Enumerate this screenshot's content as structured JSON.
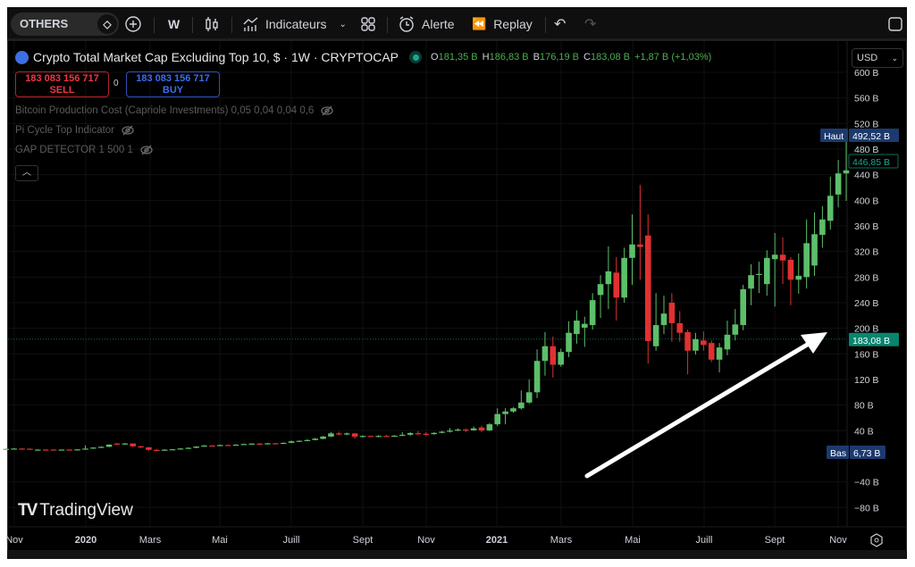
{
  "toolbar": {
    "symbol": "OTHERS",
    "interval": "W",
    "indicators_label": "Indicateurs",
    "alert_label": "Alerte",
    "replay_label": "Replay"
  },
  "legend": {
    "title": "Crypto Total Market Cap Excluding Top 10, $ · 1W · CRYPTOCAP",
    "o_label": "O",
    "o": "181,35 B",
    "h_label": "H",
    "h": "186,83 B",
    "l_label": "B",
    "l": "176,19 B",
    "c_label": "C",
    "c": "183,08 B",
    "change": "+1,87 B (+1,03%)"
  },
  "trade": {
    "sell_price": "183 083 156 717",
    "sell_label": "SELL",
    "spread": "0",
    "buy_price": "183 083 156 717",
    "buy_label": "BUY"
  },
  "indicators": [
    {
      "label": "Bitcoin Production Cost (Capriole Investments) 0,05 0,04 0,04 0,6"
    },
    {
      "label": "Pi Cycle Top Indicator"
    },
    {
      "label": "GAP DETECTOR 1 500 1"
    }
  ],
  "currency": "USD",
  "branding": "TradingView",
  "colors": {
    "up": "#5cbf6a",
    "down": "#e03131",
    "last_price": "#08856f",
    "high_low": "#1c3a6e",
    "background": "#000000"
  },
  "chart_data": {
    "type": "candlestick",
    "interval": "1W",
    "ylim": [
      -100,
      610
    ],
    "y_ticks": [
      {
        "value": 600,
        "label": "600 B"
      },
      {
        "value": 560,
        "label": "560 B"
      },
      {
        "value": 520,
        "label": "520 B"
      },
      {
        "value": 480,
        "label": "480 B"
      },
      {
        "value": 440,
        "label": "440 B"
      },
      {
        "value": 400,
        "label": "400 B"
      },
      {
        "value": 360,
        "label": "360 B"
      },
      {
        "value": 320,
        "label": "320 B"
      },
      {
        "value": 280,
        "label": "280 B"
      },
      {
        "value": 240,
        "label": "240 B"
      },
      {
        "value": 200,
        "label": "200 B"
      },
      {
        "value": 160,
        "label": "160 B"
      },
      {
        "value": 120,
        "label": "120 B"
      },
      {
        "value": 80,
        "label": "80 B"
      },
      {
        "value": 40,
        "label": "40 B"
      },
      {
        "value": -40,
        "label": "−40 B"
      },
      {
        "value": -80,
        "label": "−80 B"
      }
    ],
    "x_ticks": [
      "Nov",
      "2020",
      "Mars",
      "Mai",
      "Juill",
      "Sept",
      "Nov",
      "2021",
      "Mars",
      "Mai",
      "Juill",
      "Sept",
      "Nov"
    ],
    "high_marker": {
      "label": "Haut",
      "value": 492.52,
      "text": "492,52 B"
    },
    "low_marker": {
      "label": "Bas",
      "value": 6.73,
      "text": "6,73 B"
    },
    "last_price": {
      "value": 446.85,
      "text": "446,85 B"
    },
    "crosshair_price": {
      "value": 183.08,
      "text": "183,08 B"
    },
    "ohlc": [
      [
        11,
        12.4,
        10.6,
        11.6
      ],
      [
        11.6,
        12.6,
        11.2,
        12.1
      ],
      [
        12.1,
        12.5,
        11.6,
        12.0
      ],
      [
        11.8,
        12.2,
        10,
        10.5
      ],
      [
        10.3,
        11,
        9.8,
        10.5
      ],
      [
        10.5,
        11,
        9.9,
        10.4
      ],
      [
        10.5,
        11,
        9.8,
        10.2
      ],
      [
        10.2,
        10.9,
        9.8,
        10.5
      ],
      [
        10.5,
        10.9,
        9.7,
        10.2
      ],
      [
        10.2,
        11.2,
        9.9,
        10.8
      ],
      [
        10.8,
        17,
        10.3,
        12
      ],
      [
        12,
        14.2,
        11.6,
        13.6
      ],
      [
        13.6,
        15.4,
        13,
        14.8
      ],
      [
        14.8,
        18.8,
        14.2,
        18.2
      ],
      [
        19.8,
        21.2,
        18.6,
        19.2
      ],
      [
        19.2,
        21,
        18.6,
        20
      ],
      [
        20,
        20.5,
        14.5,
        15.5
      ],
      [
        15.5,
        16.5,
        13,
        14
      ],
      [
        14,
        14.5,
        8.6,
        10
      ],
      [
        10,
        11.5,
        8.6,
        9.5
      ],
      [
        9.5,
        11,
        9,
        10.3
      ],
      [
        10.3,
        11.5,
        10,
        11
      ],
      [
        11,
        12.8,
        10.6,
        12.2
      ],
      [
        12.2,
        14,
        11.8,
        13.2
      ],
      [
        13.2,
        15.8,
        12.8,
        15.2
      ],
      [
        15.2,
        17.5,
        14.8,
        16.8
      ],
      [
        16.8,
        17.6,
        15.5,
        16.2
      ],
      [
        16.2,
        18.2,
        15.8,
        17.6
      ],
      [
        17.6,
        18.5,
        16.6,
        17.2
      ],
      [
        17.2,
        18.8,
        16.8,
        18.2
      ],
      [
        18.2,
        19.6,
        17.6,
        19.2
      ],
      [
        19.2,
        20.3,
        18.6,
        19.8
      ],
      [
        19.8,
        20.8,
        18.8,
        19.2
      ],
      [
        19.2,
        21,
        18.8,
        20.3
      ],
      [
        20.3,
        21,
        19.2,
        19.8
      ],
      [
        19.8,
        21.6,
        19.3,
        21
      ],
      [
        21,
        24.6,
        20.6,
        23.4
      ],
      [
        23.4,
        24.8,
        22.8,
        24.2
      ],
      [
        24.2,
        26.8,
        23.4,
        25.4
      ],
      [
        25.4,
        28.6,
        24.8,
        27.6
      ],
      [
        27.2,
        31.8,
        26.6,
        30.8
      ],
      [
        30.8,
        38,
        30,
        35.8
      ],
      [
        35.8,
        38.4,
        32.6,
        34
      ],
      [
        34,
        37.2,
        32.8,
        35.8
      ],
      [
        35.8,
        36.6,
        27.4,
        30.6
      ],
      [
        30.6,
        32.8,
        29.4,
        31.8
      ],
      [
        31.8,
        32.6,
        30.2,
        31
      ],
      [
        31,
        33,
        29.6,
        31.8
      ],
      [
        31.8,
        33.4,
        30.6,
        31.2
      ],
      [
        31.2,
        33,
        30.4,
        32.2
      ],
      [
        32.2,
        37.6,
        31.6,
        33.6
      ],
      [
        33.6,
        37.8,
        32,
        36.2
      ],
      [
        36.2,
        39.4,
        32.8,
        35.2
      ],
      [
        35.2,
        37.6,
        31.8,
        34.6
      ],
      [
        34.6,
        37.6,
        33.8,
        36.6
      ],
      [
        36.6,
        39.8,
        35.8,
        38.4
      ],
      [
        38.4,
        44,
        37.2,
        40.2
      ],
      [
        40.2,
        43.6,
        39.2,
        41.8
      ],
      [
        41.8,
        43.4,
        37.6,
        40.6
      ],
      [
        40.6,
        46.6,
        40,
        43.6
      ],
      [
        45,
        48,
        37.6,
        40.4
      ],
      [
        40.4,
        52,
        39.6,
        50
      ],
      [
        50,
        75,
        47,
        66
      ],
      [
        66,
        75,
        50,
        70
      ],
      [
        70,
        77,
        68,
        75
      ],
      [
        75,
        103,
        73,
        84
      ],
      [
        84,
        120,
        82,
        100
      ],
      [
        100,
        167,
        91,
        149
      ],
      [
        149,
        194,
        126,
        172
      ],
      [
        172,
        187,
        123,
        143
      ],
      [
        143,
        168,
        140,
        163
      ],
      [
        163,
        211,
        155,
        193
      ],
      [
        191,
        228,
        176,
        212
      ],
      [
        201,
        218,
        171,
        207
      ],
      [
        205,
        255,
        198,
        244
      ],
      [
        252,
        283,
        216,
        269
      ],
      [
        269,
        328,
        230,
        289
      ],
      [
        287,
        311,
        212,
        248
      ],
      [
        248,
        326,
        240,
        310
      ],
      [
        310,
        378,
        268,
        331
      ],
      [
        331,
        424,
        276,
        327
      ],
      [
        345,
        378,
        145,
        180
      ],
      [
        172,
        255,
        165,
        205
      ],
      [
        205,
        251,
        191,
        223
      ],
      [
        240,
        255,
        179,
        208
      ],
      [
        208,
        227,
        179,
        193
      ],
      [
        194,
        198,
        128,
        165
      ],
      [
        165,
        193,
        159,
        183
      ],
      [
        181,
        195,
        165,
        174
      ],
      [
        177,
        181,
        147,
        151
      ],
      [
        151,
        177,
        131,
        170
      ],
      [
        167,
        212,
        158,
        190
      ],
      [
        190,
        230,
        181,
        206
      ],
      [
        205,
        268,
        197,
        261
      ],
      [
        262,
        300,
        236,
        283
      ],
      [
        284,
        304,
        255,
        285
      ],
      [
        269,
        322,
        251,
        310
      ],
      [
        308,
        349,
        234,
        315
      ],
      [
        315,
        342,
        269,
        306
      ],
      [
        307,
        311,
        236,
        276
      ],
      [
        276,
        317,
        254,
        282
      ],
      [
        280,
        370,
        262,
        333
      ],
      [
        298,
        381,
        282,
        347
      ],
      [
        346,
        391,
        326,
        370
      ],
      [
        368,
        437,
        354,
        407
      ],
      [
        409,
        463,
        389,
        442
      ],
      [
        442,
        492.52,
        399,
        446.85
      ]
    ]
  }
}
